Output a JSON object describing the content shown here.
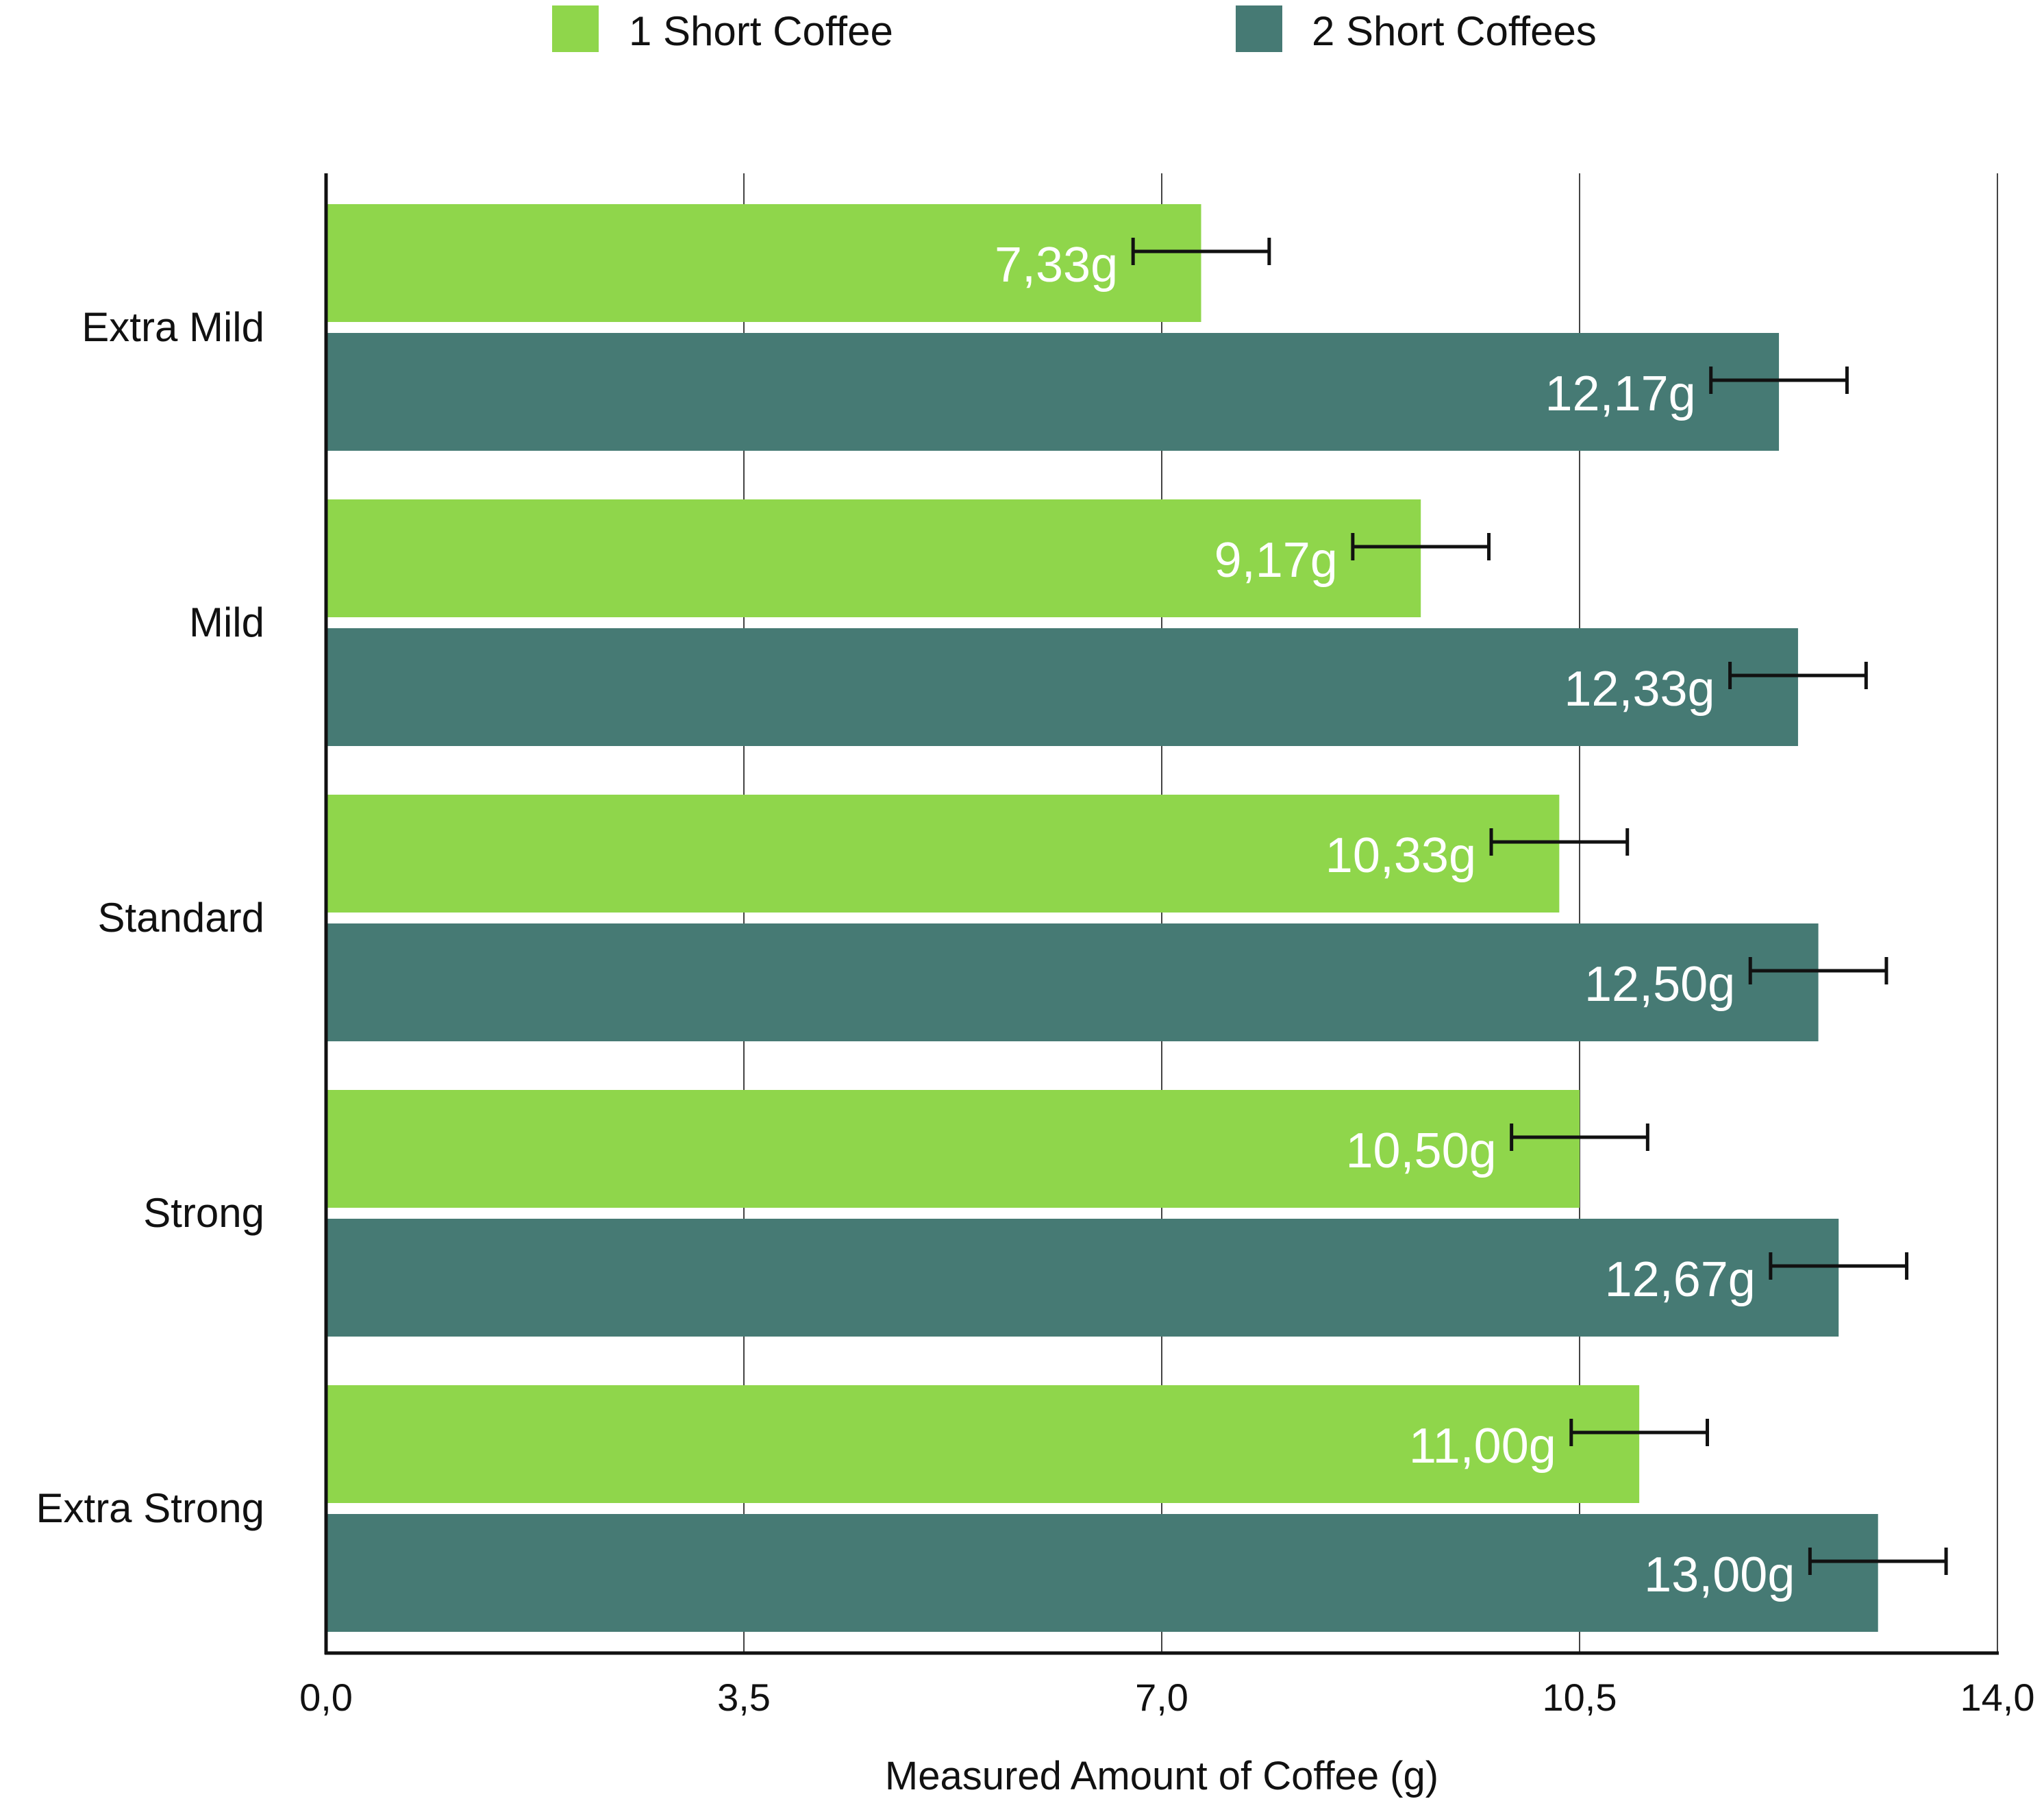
{
  "chart_data": {
    "type": "bar",
    "orientation": "horizontal",
    "title": "",
    "xlabel": "Measured Amount of Coffee (g)",
    "ylabel": "",
    "categories": [
      "Extra Mild",
      "Mild",
      "Standard",
      "Strong",
      "Extra Strong"
    ],
    "series": [
      {
        "name": "1 Short Coffee",
        "color": "#8fd64b",
        "values": [
          7.33,
          9.17,
          10.33,
          10.5,
          11.0
        ],
        "value_labels": [
          "7,33g",
          "9,17g",
          "10,33g",
          "10,50g",
          "11,00g"
        ],
        "error_plus_minus": [
          0.57,
          0.57,
          0.57,
          0.57,
          0.57
        ]
      },
      {
        "name": "2 Short Coffees",
        "color": "#467a74",
        "values": [
          12.17,
          12.33,
          12.5,
          12.67,
          13.0
        ],
        "value_labels": [
          "12,17g",
          "12,33g",
          "12,50g",
          "12,67g",
          "13,00g"
        ],
        "error_plus_minus": [
          0.57,
          0.57,
          0.57,
          0.57,
          0.57
        ]
      }
    ],
    "xlim": [
      0,
      14
    ],
    "xticks": [
      0,
      3.5,
      7,
      10.5,
      14
    ],
    "xtick_labels": [
      "0,0",
      "3,5",
      "7,0",
      "10,5",
      "14,0"
    ],
    "grid": "vertical",
    "legend_position": "top",
    "axis_color": "#111111",
    "grid_color": "#444444",
    "label_color": "#ffffff"
  }
}
